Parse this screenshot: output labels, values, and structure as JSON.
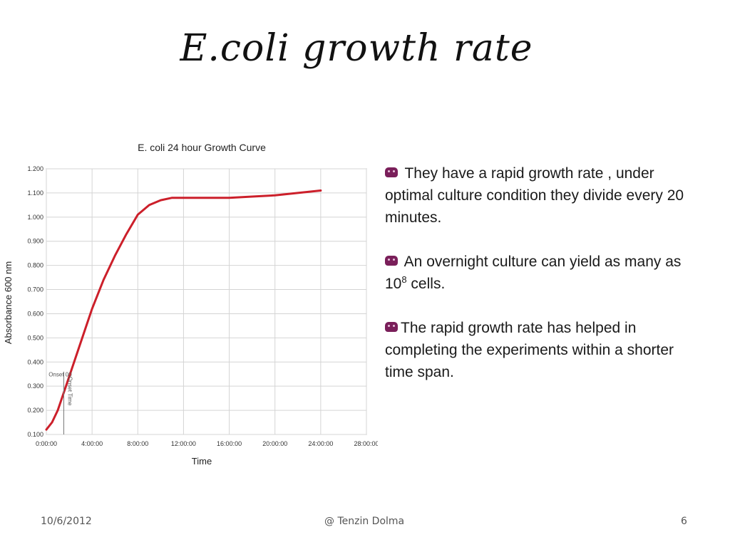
{
  "slide": {
    "title": "E.coli growth rate",
    "bullets": [
      {
        "text": " They have a rapid growth rate , under optimal culture condition they divide every 20 minutes."
      },
      {
        "text_before": " An overnight culture can yield as many as 10",
        "sup": "8",
        "text_after": " cells."
      },
      {
        "text": "The rapid growth rate has helped in completing the experiments within a shorter time span."
      }
    ],
    "footer": {
      "date": "10/6/2012",
      "author": "@ Tenzin Dolma",
      "page": "6"
    }
  },
  "chart_data": {
    "type": "line",
    "title": "E. coli 24 hour Growth Curve",
    "xlabel": "Time",
    "ylabel": "Absorbance 600 nm",
    "x_ticks": [
      "0:00:00",
      "4:00:00",
      "8:00:00",
      "12:00:00",
      "16:00:00",
      "20:00:00",
      "24:00:00",
      "28:00:00"
    ],
    "y_ticks": [
      "0.100",
      "0.200",
      "0.300",
      "0.400",
      "0.500",
      "0.600",
      "0.700",
      "0.800",
      "0.900",
      "1.000",
      "1.100",
      "1.200"
    ],
    "xlim": [
      0,
      28
    ],
    "ylim": [
      0.1,
      1.2
    ],
    "grid": true,
    "series": [
      {
        "color": "#cc1f2a",
        "x": [
          0,
          0.5,
          1,
          1.5,
          2,
          2.5,
          3,
          3.5,
          4,
          5,
          6,
          7,
          8,
          9,
          10,
          11,
          12,
          14,
          16,
          18,
          20,
          22,
          24
        ],
        "y": [
          0.12,
          0.15,
          0.2,
          0.27,
          0.34,
          0.41,
          0.48,
          0.55,
          0.62,
          0.74,
          0.84,
          0.93,
          1.01,
          1.05,
          1.07,
          1.08,
          1.08,
          1.08,
          1.08,
          1.085,
          1.09,
          1.1,
          1.11
        ]
      }
    ],
    "annotations": [
      {
        "text": "Onset 00",
        "x": 0.2,
        "y": 0.34
      },
      {
        "text": "Onset Time",
        "x": 1.9,
        "y": 0.2
      }
    ]
  }
}
